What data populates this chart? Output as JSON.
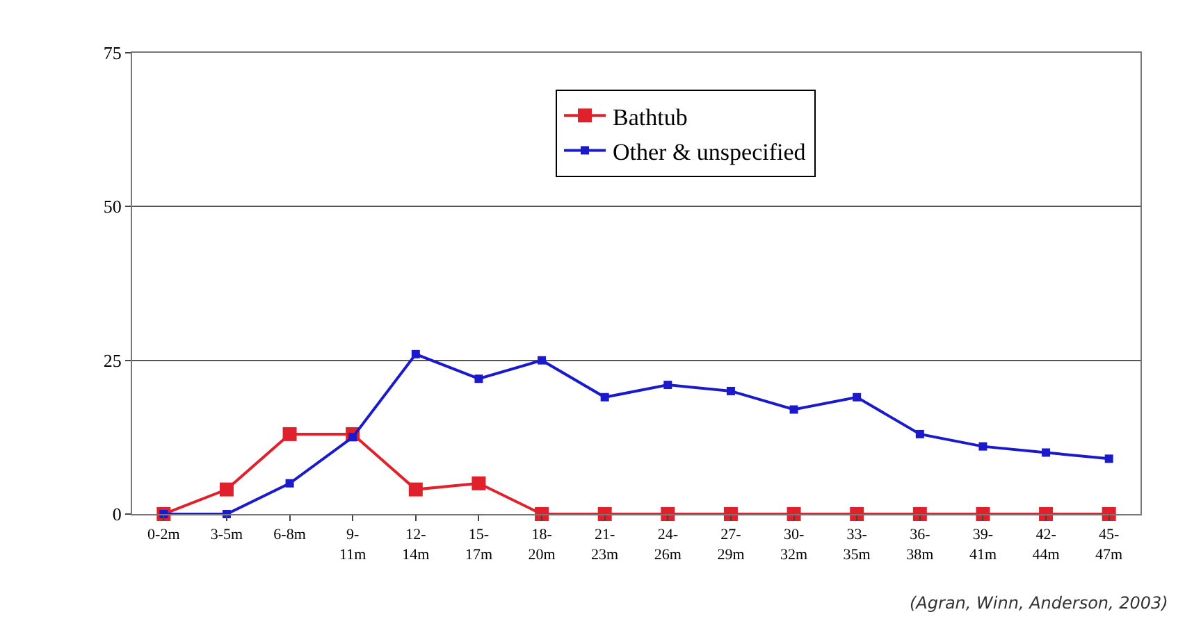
{
  "chart_data": {
    "type": "line",
    "categories": [
      "0-2m",
      "3-5m",
      "6-8m",
      "9-11m",
      "12-14m",
      "15-17m",
      "18-20m",
      "21-23m",
      "24-26m",
      "27-29m",
      "30-32m",
      "33-35m",
      "36-38m",
      "39-41m",
      "42-44m",
      "45-47m"
    ],
    "series": [
      {
        "name": "Bathtub",
        "color": "#e0202a",
        "values": [
          0,
          4,
          13,
          13,
          4,
          5,
          0,
          0,
          0,
          0,
          0,
          0,
          0,
          0,
          0,
          0
        ]
      },
      {
        "name": "Other & unspecified",
        "color": "#1a1acc",
        "values": [
          0,
          0,
          5,
          12.5,
          26,
          22,
          25,
          19,
          21,
          20,
          17,
          19,
          13,
          11,
          10,
          9
        ]
      }
    ],
    "ylim": [
      0,
      75
    ],
    "yticks": [
      0,
      25,
      50,
      75
    ],
    "grid": "y",
    "legend": "top",
    "marker": "square",
    "line_style": "solid",
    "annotations": [
      "(Agran, Winn, Anderson, 2003)"
    ]
  }
}
